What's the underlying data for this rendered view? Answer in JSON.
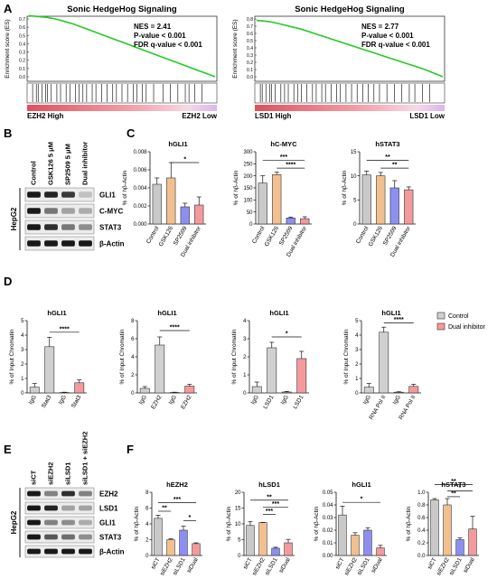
{
  "panels": {
    "A": "A",
    "B": "B",
    "C": "C",
    "D": "D",
    "E": "E",
    "F": "F"
  },
  "gsea": [
    {
      "title": "Sonic HedgeHog Signaling",
      "ylabel": "Enrichment score (ES)",
      "stats": [
        "NES = 2.41",
        "P-value < 0.001",
        "FDR q-value < 0.001"
      ],
      "left_label": "EZH2 High",
      "right_label": "EZH2 Low",
      "yticks": [
        "0.7",
        "0.6",
        "0.5",
        "0.4",
        "0.3",
        "0.2",
        "0.1",
        "0.0"
      ],
      "es_curve": [
        0.74,
        0.73,
        0.72,
        0.7,
        0.67,
        0.64,
        0.6,
        0.56,
        0.52,
        0.48,
        0.44,
        0.4,
        0.36,
        0.32,
        0.28,
        0.24,
        0.2,
        0.16,
        0.12,
        0.08,
        0.04,
        0.0
      ],
      "hits": [
        0.02,
        0.04,
        0.05,
        0.07,
        0.09,
        0.1,
        0.12,
        0.15,
        0.17,
        0.2,
        0.22,
        0.25,
        0.27,
        0.29,
        0.31,
        0.34,
        0.36,
        0.39,
        0.42,
        0.45,
        0.47,
        0.5,
        0.53,
        0.56,
        0.58,
        0.61,
        0.63,
        0.67,
        0.72,
        0.76,
        0.8,
        0.84,
        0.86,
        0.89,
        0.93
      ]
    },
    {
      "title": "Sonic HedgeHog Signaling",
      "ylabel": "Enrichment score (ES)",
      "stats": [
        "NES = 2.77",
        "P-value < 0.001",
        "FDR q-value < 0.001"
      ],
      "left_label": "LSD1 High",
      "right_label": "LSD1 Low",
      "yticks": [
        "0.8",
        "0.7",
        "0.6",
        "0.5",
        "0.4",
        "0.3",
        "0.2",
        "0.1",
        "0.0"
      ],
      "es_curve": [
        0.78,
        0.77,
        0.75,
        0.72,
        0.69,
        0.66,
        0.62,
        0.58,
        0.54,
        0.5,
        0.46,
        0.42,
        0.38,
        0.34,
        0.3,
        0.26,
        0.22,
        0.18,
        0.14,
        0.1,
        0.05,
        0.0
      ],
      "hits": [
        0.02,
        0.03,
        0.05,
        0.07,
        0.08,
        0.1,
        0.13,
        0.15,
        0.17,
        0.2,
        0.22,
        0.24,
        0.27,
        0.3,
        0.32,
        0.35,
        0.37,
        0.4,
        0.43,
        0.45,
        0.48,
        0.51,
        0.54,
        0.57,
        0.6,
        0.63,
        0.66,
        0.7,
        0.74,
        0.78,
        0.82,
        0.85,
        0.89,
        0.93
      ]
    }
  ],
  "blotB": {
    "lanes": [
      "Control",
      "GSK126 5 μM",
      "SP2509 5 μM",
      "Dual inhibitor"
    ],
    "cell": "HepG2",
    "rows": [
      {
        "label": "GLI1",
        "levels": [
          1.0,
          0.95,
          0.85,
          0.2
        ]
      },
      {
        "label": "C-MYC",
        "levels": [
          1.0,
          0.55,
          0.35,
          0.3
        ]
      },
      {
        "label": "STAT3",
        "levels": [
          1.0,
          0.9,
          0.55,
          0.45
        ]
      },
      {
        "label": "β-Actin",
        "levels": [
          1.0,
          1.0,
          1.0,
          1.0
        ]
      }
    ]
  },
  "blotE": {
    "lanes": [
      "siCT",
      "siEZH2",
      "siLSD1",
      "siLSD1 + siEZH2"
    ],
    "cell": "HepG2",
    "rows": [
      {
        "label": "EZH2",
        "levels": [
          1.0,
          0.5,
          0.9,
          0.5
        ]
      },
      {
        "label": "LSD1",
        "levels": [
          1.0,
          0.95,
          0.35,
          0.35
        ]
      },
      {
        "label": "GLI1",
        "levels": [
          1.0,
          0.5,
          0.45,
          0.3
        ]
      },
      {
        "label": "STAT3",
        "levels": [
          1.0,
          0.7,
          0.6,
          0.45
        ]
      },
      {
        "label": "β-Actin",
        "levels": [
          1.0,
          1.0,
          1.0,
          1.0
        ]
      }
    ]
  },
  "chart_data": [
    {
      "type": "bar",
      "panel": "C",
      "title": "hGLI1",
      "ylabel": "% of hβ-Actin",
      "categories": [
        "Control",
        "GSK126",
        "SP2509",
        "Dual inhibitor"
      ],
      "values": [
        0.0044,
        0.0051,
        0.0019,
        0.0021
      ],
      "errors": [
        0.0007,
        0.0017,
        0.0004,
        0.0009
      ],
      "ylim": [
        0,
        0.008
      ],
      "yticks": [
        "0.000",
        "0.002",
        "0.004",
        "0.006",
        "0.008"
      ],
      "colors": [
        "#c9c9c9",
        "#f2c08f",
        "#8d8ff0",
        "#f49a9c"
      ],
      "sig": [
        {
          "from": 1,
          "to": 3,
          "label": "*",
          "y": 0.0068
        }
      ]
    },
    {
      "type": "bar",
      "panel": "C",
      "title": "hC-MYC",
      "ylabel": "% of hβ-Actin",
      "categories": [
        "Control",
        "GSK126",
        "SP2509",
        "Dual inhibitor"
      ],
      "values": [
        170,
        205,
        25,
        22
      ],
      "errors": [
        30,
        10,
        4,
        8
      ],
      "ylim": [
        0,
        300
      ],
      "yticks": [
        "0",
        "50",
        "100",
        "150",
        "200",
        "250",
        "300"
      ],
      "colors": [
        "#c9c9c9",
        "#f2c08f",
        "#8d8ff0",
        "#f49a9c"
      ],
      "sig": [
        {
          "from": 0,
          "to": 3,
          "label": "***",
          "y": 265
        },
        {
          "from": 1,
          "to": 3,
          "label": "****",
          "y": 232
        }
      ]
    },
    {
      "type": "bar",
      "panel": "C",
      "title": "hSTAT3",
      "ylabel": "% of hβ-Actin",
      "categories": [
        "Control",
        "GSK126",
        "SP2509",
        "Dual inhibitor"
      ],
      "values": [
        10.2,
        10.0,
        7.5,
        7.1
      ],
      "errors": [
        0.8,
        0.7,
        1.5,
        0.6
      ],
      "ylim": [
        0,
        15
      ],
      "yticks": [
        "0",
        "5",
        "10",
        "15"
      ],
      "colors": [
        "#c9c9c9",
        "#f2c08f",
        "#8d8ff0",
        "#f49a9c"
      ],
      "sig": [
        {
          "from": 0,
          "to": 3,
          "label": "**",
          "y": 13.2
        },
        {
          "from": 1,
          "to": 3,
          "label": "**",
          "y": 11.6
        }
      ]
    },
    {
      "type": "bar",
      "panel": "D",
      "title": "hGLI1",
      "ylabel": "% of Input Chromatin",
      "categories": [
        "IgG",
        "Stat3",
        "IgG",
        "Stat3"
      ],
      "values": [
        0.4,
        3.2,
        0.03,
        0.7
      ],
      "errors": [
        0.25,
        0.65,
        0.02,
        0.2
      ],
      "ylim": [
        0,
        5
      ],
      "yticks": [
        "0",
        "1",
        "2",
        "3",
        "4",
        "5"
      ],
      "colors": [
        "#d0d0d0",
        "#d0d0d0",
        "#f49a9c",
        "#f49a9c"
      ],
      "sig": [
        {
          "from": 1,
          "to": 3,
          "label": "****",
          "y": 4.2
        }
      ]
    },
    {
      "type": "bar",
      "panel": "D",
      "title": "hGLI1",
      "ylabel": "% of Input Chromatin",
      "categories": [
        "IgG",
        "EZH2",
        "IgG",
        "EZH2"
      ],
      "values": [
        0.5,
        5.3,
        0.05,
        0.75
      ],
      "errors": [
        0.2,
        0.9,
        0.03,
        0.2
      ],
      "ylim": [
        0,
        8
      ],
      "yticks": [
        "0",
        "2",
        "4",
        "6",
        "8"
      ],
      "colors": [
        "#d0d0d0",
        "#d0d0d0",
        "#f49a9c",
        "#f49a9c"
      ],
      "sig": [
        {
          "from": 1,
          "to": 3,
          "label": "****",
          "y": 6.9
        }
      ]
    },
    {
      "type": "bar",
      "panel": "D",
      "title": "hGLI1",
      "ylabel": "% of Input Chromatin",
      "categories": [
        "IgG",
        "LSD1",
        "IgG",
        "LSD1"
      ],
      "values": [
        0.35,
        2.5,
        0.05,
        1.9
      ],
      "errors": [
        0.25,
        0.3,
        0.03,
        0.4
      ],
      "ylim": [
        0,
        4
      ],
      "yticks": [
        "0",
        "1",
        "2",
        "3",
        "4"
      ],
      "colors": [
        "#d0d0d0",
        "#d0d0d0",
        "#f49a9c",
        "#f49a9c"
      ],
      "sig": [
        {
          "from": 1,
          "to": 3,
          "label": "*",
          "y": 3.1
        }
      ]
    },
    {
      "type": "bar",
      "panel": "D",
      "title": "hGLI1",
      "ylabel": "% of Input Chromatin",
      "categories": [
        "IgG",
        "RNA Pol II",
        "IgG",
        "RNA Pol II"
      ],
      "values": [
        0.4,
        4.2,
        0.05,
        0.45
      ],
      "errors": [
        0.25,
        0.35,
        0.03,
        0.15
      ],
      "ylim": [
        0,
        5
      ],
      "yticks": [
        "0",
        "1",
        "2",
        "3",
        "4",
        "5"
      ],
      "colors": [
        "#d0d0d0",
        "#d0d0d0",
        "#f49a9c",
        "#f49a9c"
      ],
      "sig": [
        {
          "from": 1,
          "to": 3,
          "label": "****",
          "y": 4.85
        }
      ]
    },
    {
      "type": "bar",
      "panel": "F",
      "title": "hEZH2",
      "ylabel": "% of hβ-Actin",
      "categories": [
        "siCT",
        "siEZH2",
        "siLSD1",
        "siDual"
      ],
      "values": [
        4.7,
        2.0,
        3.2,
        1.5
      ],
      "errors": [
        0.4,
        0.1,
        0.5,
        0.1
      ],
      "ylim": [
        0,
        8
      ],
      "yticks": [
        "0",
        "2",
        "4",
        "6",
        "8"
      ],
      "colors": [
        "#c9c9c9",
        "#f2c08f",
        "#8d8ff0",
        "#f49a9c"
      ],
      "sig": [
        {
          "from": 0,
          "to": 3,
          "label": "***",
          "y": 6.7
        },
        {
          "from": 0,
          "to": 1,
          "label": "**",
          "y": 5.6
        },
        {
          "from": 2,
          "to": 3,
          "label": "*",
          "y": 4.4
        }
      ]
    },
    {
      "type": "bar",
      "panel": "F",
      "title": "hLSD1",
      "ylabel": "% of hβ-Actin",
      "categories": [
        "siCT",
        "siEZH2",
        "siLSD1",
        "siDual"
      ],
      "values": [
        9.5,
        10.4,
        2.3,
        4.0
      ],
      "errors": [
        1.2,
        0.1,
        0.3,
        1.1
      ],
      "ylim": [
        0,
        20
      ],
      "yticks": [
        "0",
        "5",
        "10",
        "15",
        "20"
      ],
      "colors": [
        "#c9c9c9",
        "#f2c08f",
        "#8d8ff0",
        "#f49a9c"
      ],
      "sig": [
        {
          "from": 0,
          "to": 3,
          "label": "**",
          "y": 17.5
        },
        {
          "from": 1,
          "to": 3,
          "label": "***",
          "y": 15.3
        },
        {
          "from": 1,
          "to": 2,
          "label": "***",
          "y": 13.0
        }
      ]
    },
    {
      "type": "bar",
      "panel": "F",
      "title": "hGLI1",
      "ylabel": "% of hβ-Actin",
      "categories": [
        "siCT",
        "siEZH2",
        "siLSD1",
        "siDual"
      ],
      "values": [
        0.032,
        0.016,
        0.02,
        0.006
      ],
      "errors": [
        0.007,
        0.002,
        0.002,
        0.002
      ],
      "ylim": [
        0,
        0.05
      ],
      "yticks": [
        "0.00",
        "0.01",
        "0.02",
        "0.03",
        "0.04",
        "0.05"
      ],
      "colors": [
        "#c9c9c9",
        "#f2c08f",
        "#8d8ff0",
        "#f49a9c"
      ],
      "sig": [
        {
          "from": 0,
          "to": 3,
          "label": "*",
          "y": 0.042
        }
      ]
    },
    {
      "type": "bar",
      "panel": "F",
      "title": "hSTAT3",
      "ylabel": "% of hβ-Actin",
      "categories": [
        "siCT",
        "siEZH2",
        "siLSD1",
        "siDual"
      ],
      "values": [
        0.88,
        0.8,
        0.25,
        0.42
      ],
      "errors": [
        0.02,
        0.1,
        0.03,
        0.2
      ],
      "ylim": [
        0,
        1.0
      ],
      "yticks": [
        "0.0",
        "0.2",
        "0.4",
        "0.6",
        "0.8",
        "1.0"
      ],
      "colors": [
        "#c9c9c9",
        "#f2c08f",
        "#8d8ff0",
        "#f49a9c"
      ],
      "sig": [
        {
          "from": 0,
          "to": 3,
          "label": "**",
          "y": 1.12
        },
        {
          "from": 1,
          "to": 3,
          "label": "*",
          "y": 1.02
        },
        {
          "from": 1,
          "to": 2,
          "label": "**",
          "y": 0.93
        }
      ]
    }
  ],
  "legendD": [
    {
      "label": "Control",
      "color": "#d0d0d0"
    },
    {
      "label": "Dual inhibitor",
      "color": "#f49a9c"
    }
  ]
}
